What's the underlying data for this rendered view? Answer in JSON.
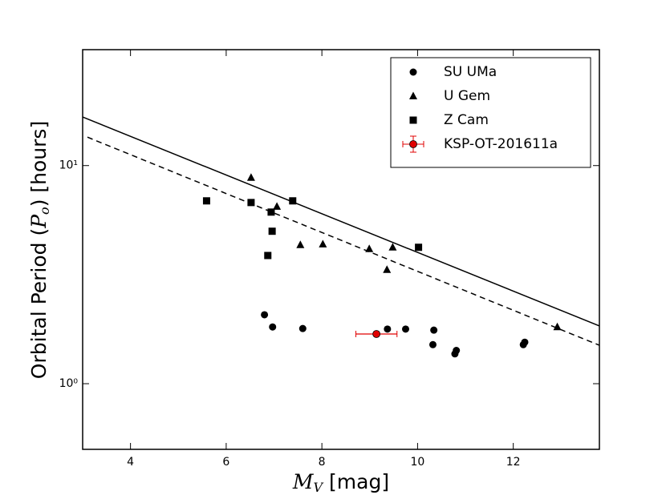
{
  "chart_data": {
    "type": "scatter",
    "xlabel": {
      "symbol": "M",
      "sub": "V",
      "rest": " [mag]"
    },
    "ylabel": {
      "before": "Orbital Period (",
      "symbol": "P",
      "sub": "o",
      "after": ") [hours]"
    },
    "xlim": [
      3,
      13.8
    ],
    "ylim": [
      0.5,
      34
    ],
    "log_y": true,
    "xticks": [
      4,
      6,
      8,
      10,
      12
    ],
    "yticks": [
      {
        "value": 1,
        "label": "10⁰"
      },
      {
        "value": 10,
        "label": "10¹"
      }
    ],
    "legend": "upper right",
    "series": [
      {
        "name": "SU UMa",
        "marker": "circle",
        "color": "#000000",
        "x": [
          6.8,
          6.97,
          7.6,
          9.37,
          9.75,
          10.34,
          10.32,
          10.81,
          10.78,
          12.21,
          12.24
        ],
        "y": [
          2.07,
          1.82,
          1.79,
          1.78,
          1.78,
          1.76,
          1.51,
          1.42,
          1.37,
          1.51,
          1.55
        ]
      },
      {
        "name": "U Gem",
        "marker": "triangle",
        "color": "#000000",
        "x": [
          6.52,
          7.06,
          7.55,
          8.02,
          8.99,
          9.48,
          9.36,
          12.92
        ],
        "y": [
          8.81,
          6.49,
          4.33,
          4.36,
          4.15,
          4.22,
          3.33,
          1.82
        ]
      },
      {
        "name": "Z Cam",
        "marker": "square",
        "color": "#000000",
        "x": [
          5.59,
          6.52,
          7.39,
          6.94,
          6.96,
          6.87,
          10.02
        ],
        "y": [
          6.89,
          6.77,
          6.89,
          6.12,
          5.0,
          3.87,
          4.22
        ]
      },
      {
        "name": "KSP-OT-201611a",
        "marker": "errorbar",
        "color": "#e00000",
        "x": [
          9.14
        ],
        "y": [
          1.69
        ],
        "xerr": [
          0.43
        ],
        "yerr": [
          0.05
        ]
      }
    ],
    "lines": [
      {
        "style": "solid",
        "color": "#000000",
        "x": [
          3,
          13.8
        ],
        "y": [
          16.7,
          1.84
        ]
      },
      {
        "style": "dashed",
        "color": "#000000",
        "x": [
          3.1,
          13.8
        ],
        "y": [
          13.5,
          1.5
        ]
      }
    ]
  }
}
